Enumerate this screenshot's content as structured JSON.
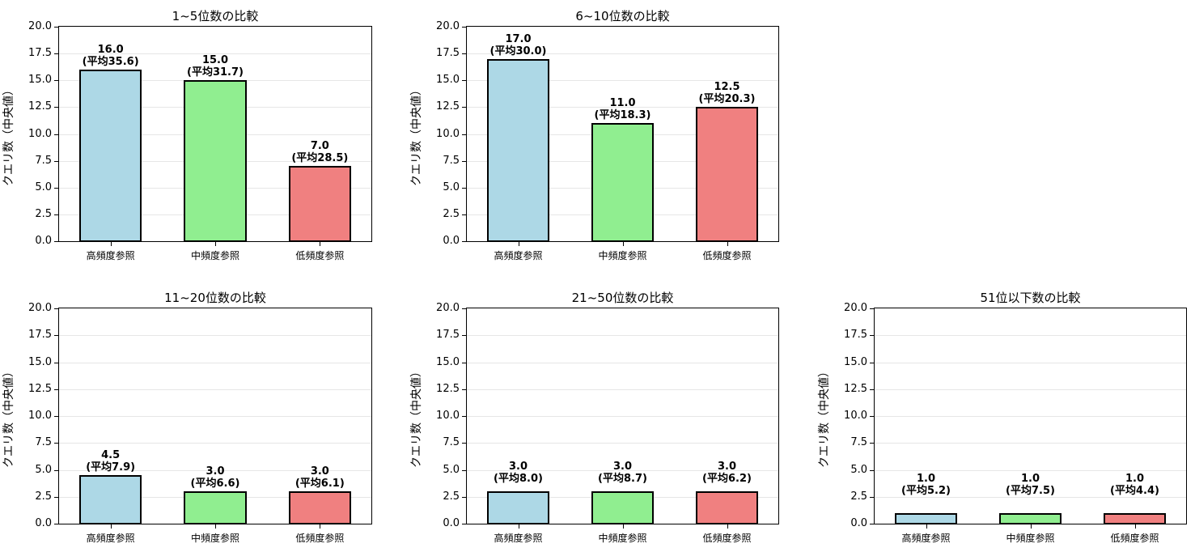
{
  "figure": {
    "ylabel": "クエリ数（中央値）",
    "yticks": [
      "0.0",
      "2.5",
      "5.0",
      "7.5",
      "10.0",
      "12.5",
      "15.0",
      "17.5",
      "20.0"
    ],
    "categories": [
      "高頻度参照",
      "中頻度参照",
      "低頻度参照"
    ],
    "colors": [
      "#add8e6",
      "#90ee90",
      "#f08080"
    ]
  },
  "panels": [
    {
      "title": "1~5位数の比較",
      "values": [
        16.0,
        15.0,
        7.0
      ],
      "labels": [
        "16.0",
        "15.0",
        "7.0"
      ],
      "means": [
        "(平均35.6)",
        "(平均31.7)",
        "(平均28.5)"
      ]
    },
    {
      "title": "6~10位数の比較",
      "values": [
        17.0,
        11.0,
        12.5
      ],
      "labels": [
        "17.0",
        "11.0",
        "12.5"
      ],
      "means": [
        "(平均30.0)",
        "(平均18.3)",
        "(平均20.3)"
      ]
    },
    {
      "title": "11~20位数の比較",
      "values": [
        4.5,
        3.0,
        3.0
      ],
      "labels": [
        "4.5",
        "3.0",
        "3.0"
      ],
      "means": [
        "(平均7.9)",
        "(平均6.6)",
        "(平均6.1)"
      ]
    },
    {
      "title": "21~50位数の比較",
      "values": [
        3.0,
        3.0,
        3.0
      ],
      "labels": [
        "3.0",
        "3.0",
        "3.0"
      ],
      "means": [
        "(平均8.0)",
        "(平均8.7)",
        "(平均6.2)"
      ]
    },
    {
      "title": "51位以下数の比較",
      "values": [
        1.0,
        1.0,
        1.0
      ],
      "labels": [
        "1.0",
        "1.0",
        "1.0"
      ],
      "means": [
        "(平均5.2)",
        "(平均7.5)",
        "(平均4.4)"
      ]
    }
  ],
  "chart_data": [
    {
      "type": "bar",
      "title": "1~5位数の比較",
      "categories": [
        "高頻度参照",
        "中頻度参照",
        "低頻度参照"
      ],
      "values": [
        16.0,
        15.0,
        7.0
      ],
      "annotations": [
        "16.0 (平均35.6)",
        "15.0 (平均31.7)",
        "7.0 (平均28.5)"
      ],
      "xlabel": "",
      "ylabel": "クエリ数（中央値）",
      "ylim": [
        0,
        20
      ],
      "grid": "y"
    },
    {
      "type": "bar",
      "title": "6~10位数の比較",
      "categories": [
        "高頻度参照",
        "中頻度参照",
        "低頻度参照"
      ],
      "values": [
        17.0,
        11.0,
        12.5
      ],
      "annotations": [
        "17.0 (平均30.0)",
        "11.0 (平均18.3)",
        "12.5 (平均20.3)"
      ],
      "xlabel": "",
      "ylabel": "クエリ数（中央値）",
      "ylim": [
        0,
        20
      ],
      "grid": "y"
    },
    {
      "type": "bar",
      "title": "11~20位数の比較",
      "categories": [
        "高頻度参照",
        "中頻度参照",
        "低頻度参照"
      ],
      "values": [
        4.5,
        3.0,
        3.0
      ],
      "annotations": [
        "4.5 (平均7.9)",
        "3.0 (平均6.6)",
        "3.0 (平均6.1)"
      ],
      "xlabel": "",
      "ylabel": "クエリ数（中央値）",
      "ylim": [
        0,
        20
      ],
      "grid": "y"
    },
    {
      "type": "bar",
      "title": "21~50位数の比較",
      "categories": [
        "高頻度参照",
        "中頻度参照",
        "低頻度参照"
      ],
      "values": [
        3.0,
        3.0,
        3.0
      ],
      "annotations": [
        "3.0 (平均8.0)",
        "3.0 (平均8.7)",
        "3.0 (平均6.2)"
      ],
      "xlabel": "",
      "ylabel": "クエリ数（中央値）",
      "ylim": [
        0,
        20
      ],
      "grid": "y"
    },
    {
      "type": "bar",
      "title": "51位以下数の比較",
      "categories": [
        "高頻度参照",
        "中頻度参照",
        "低頻度参照"
      ],
      "values": [
        1.0,
        1.0,
        1.0
      ],
      "annotations": [
        "1.0 (平均5.2)",
        "1.0 (平均7.5)",
        "1.0 (平均4.4)"
      ],
      "xlabel": "",
      "ylabel": "クエリ数（中央値）",
      "ylim": [
        0,
        20
      ],
      "grid": "y"
    }
  ]
}
